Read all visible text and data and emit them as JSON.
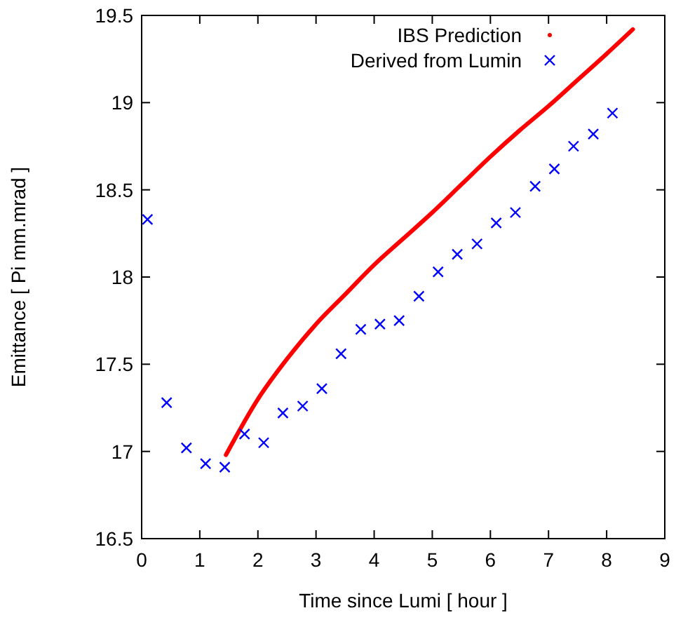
{
  "chart_data": {
    "type": "line",
    "xlabel": "Time since Lumi [ hour ]",
    "ylabel": "Emittance [ Pi mm.mrad ]",
    "xlim": [
      0,
      9
    ],
    "xticks": [
      0,
      1,
      2,
      3,
      4,
      5,
      6,
      7,
      8,
      9
    ],
    "ylim": [
      16.5,
      19.5
    ],
    "yticks": [
      16.5,
      17,
      17.5,
      18,
      18.5,
      19,
      19.5
    ],
    "grid": false,
    "legend": "top right",
    "series": [
      {
        "name": "IBS Prediction",
        "color": "#ff0000",
        "marker": "none",
        "x": [
          1.45,
          2,
          2.5,
          3,
          3.5,
          4,
          4.5,
          5,
          5.5,
          6,
          6.5,
          7,
          7.5,
          8,
          8.45
        ],
        "values": [
          16.98,
          17.3,
          17.53,
          17.73,
          17.9,
          18.07,
          18.22,
          18.37,
          18.53,
          18.69,
          18.84,
          18.98,
          19.13,
          19.28,
          19.42
        ]
      },
      {
        "name": "Derived from Lumin",
        "type": "scatter",
        "color": "#0000ff",
        "marker": "cross",
        "x": [
          0.1,
          0.43,
          0.77,
          1.1,
          1.43,
          1.77,
          2.1,
          2.43,
          2.77,
          3.1,
          3.43,
          3.77,
          4.1,
          4.43,
          4.77,
          5.1,
          5.43,
          5.77,
          6.1,
          6.43,
          6.77,
          7.1,
          7.43,
          7.77,
          8.1
        ],
        "values": [
          18.33,
          17.28,
          17.02,
          16.93,
          16.91,
          17.1,
          17.05,
          17.22,
          17.26,
          17.36,
          17.56,
          17.7,
          17.73,
          17.75,
          17.89,
          18.03,
          18.13,
          18.19,
          18.31,
          18.37,
          18.52,
          18.62,
          18.75,
          18.82,
          18.94
        ]
      }
    ]
  }
}
